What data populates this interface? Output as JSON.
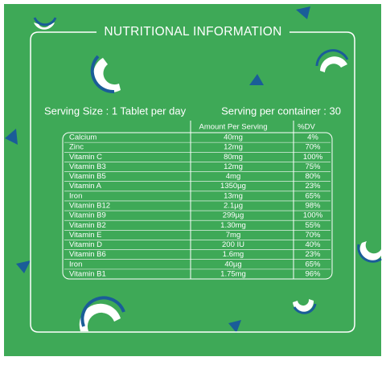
{
  "header": {
    "title": "NUTRITIONAL INFORMATION"
  },
  "serving": {
    "size": "Serving Size : 1 Tablet per day",
    "per_container": "Serving per container : 30"
  },
  "table": {
    "columns": [
      "Amount Per Serving",
      "%DV"
    ],
    "rows": [
      [
        "Calcium",
        "40mg",
        "4%"
      ],
      [
        "Zinc",
        "12mg",
        "70%"
      ],
      [
        "Vitamin C",
        "80mg",
        "100%"
      ],
      [
        "Vitamin B3",
        "12mg",
        "75%"
      ],
      [
        "Vitamin B5",
        "4mg",
        "80%"
      ],
      [
        "Vitamin A",
        "1350µg",
        "23%"
      ],
      [
        "Iron",
        "13mg",
        "65%"
      ],
      [
        "Vitamin B12",
        "2.1µg",
        "98%"
      ],
      [
        "Vitamin B9",
        "299µg",
        "100%"
      ],
      [
        "Vitamin B2",
        "1.30mg",
        "55%"
      ],
      [
        "Vitamin E",
        "7mg",
        "70%"
      ],
      [
        "Vitamin D",
        "200 IU",
        "40%"
      ],
      [
        "Vitamin B6",
        "1.6mg",
        "23%"
      ],
      [
        "Iron",
        "40µg",
        "65%"
      ],
      [
        "Vitamin B1",
        "1.75mg",
        "96%"
      ]
    ]
  }
}
